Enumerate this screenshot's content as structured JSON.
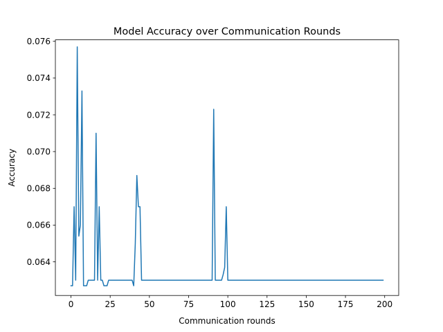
{
  "chart_data": {
    "type": "line",
    "title": "Model Accuracy over Communication Rounds",
    "xlabel": "Communication rounds",
    "ylabel": "Accuracy",
    "xlim": [
      -9.95,
      208.95
    ],
    "ylim": [
      0.06217,
      0.07608
    ],
    "xticks": [
      0,
      25,
      50,
      75,
      100,
      125,
      150,
      175,
      200
    ],
    "yticks": [
      0.064,
      0.066,
      0.068,
      0.07,
      0.072,
      0.074,
      0.076
    ],
    "ytick_labels": [
      "0.064",
      "0.066",
      "0.068",
      "0.070",
      "0.072",
      "0.074",
      "0.076"
    ],
    "grid": false,
    "series": [
      {
        "color": "#1f77b4",
        "points": [
          [
            0,
            0.0627
          ],
          [
            1,
            0.0627
          ],
          [
            2,
            0.067
          ],
          [
            3,
            0.063
          ],
          [
            4,
            0.0757
          ],
          [
            5,
            0.0654
          ],
          [
            6,
            0.066
          ],
          [
            7,
            0.0733
          ],
          [
            8,
            0.0627
          ],
          [
            9,
            0.0627
          ],
          [
            10,
            0.0627
          ],
          [
            11,
            0.063
          ],
          [
            12,
            0.063
          ],
          [
            13,
            0.063
          ],
          [
            14,
            0.063
          ],
          [
            15,
            0.063
          ],
          [
            16,
            0.071
          ],
          [
            17,
            0.063
          ],
          [
            18,
            0.067
          ],
          [
            19,
            0.063
          ],
          [
            20,
            0.063
          ],
          [
            21,
            0.0627
          ],
          [
            22,
            0.0627
          ],
          [
            23,
            0.0627
          ],
          [
            24,
            0.063
          ],
          [
            25,
            0.063
          ],
          [
            26,
            0.063
          ],
          [
            27,
            0.063
          ],
          [
            28,
            0.063
          ],
          [
            29,
            0.063
          ],
          [
            30,
            0.063
          ],
          [
            31,
            0.063
          ],
          [
            32,
            0.063
          ],
          [
            33,
            0.063
          ],
          [
            34,
            0.063
          ],
          [
            35,
            0.063
          ],
          [
            36,
            0.063
          ],
          [
            37,
            0.063
          ],
          [
            38,
            0.063
          ],
          [
            39,
            0.063
          ],
          [
            40,
            0.0627
          ],
          [
            41,
            0.065
          ],
          [
            42,
            0.0687
          ],
          [
            43,
            0.067
          ],
          [
            44,
            0.067
          ],
          [
            45,
            0.063
          ],
          [
            46,
            0.063
          ],
          [
            90,
            0.063
          ],
          [
            91,
            0.0723
          ],
          [
            92,
            0.063
          ],
          [
            93,
            0.063
          ],
          [
            94,
            0.063
          ],
          [
            95,
            0.063
          ],
          [
            96,
            0.063
          ],
          [
            97,
            0.0633
          ],
          [
            98,
            0.0637
          ],
          [
            99,
            0.067
          ],
          [
            100,
            0.063
          ],
          [
            101,
            0.063
          ],
          [
            199,
            0.063
          ]
        ]
      }
    ]
  }
}
